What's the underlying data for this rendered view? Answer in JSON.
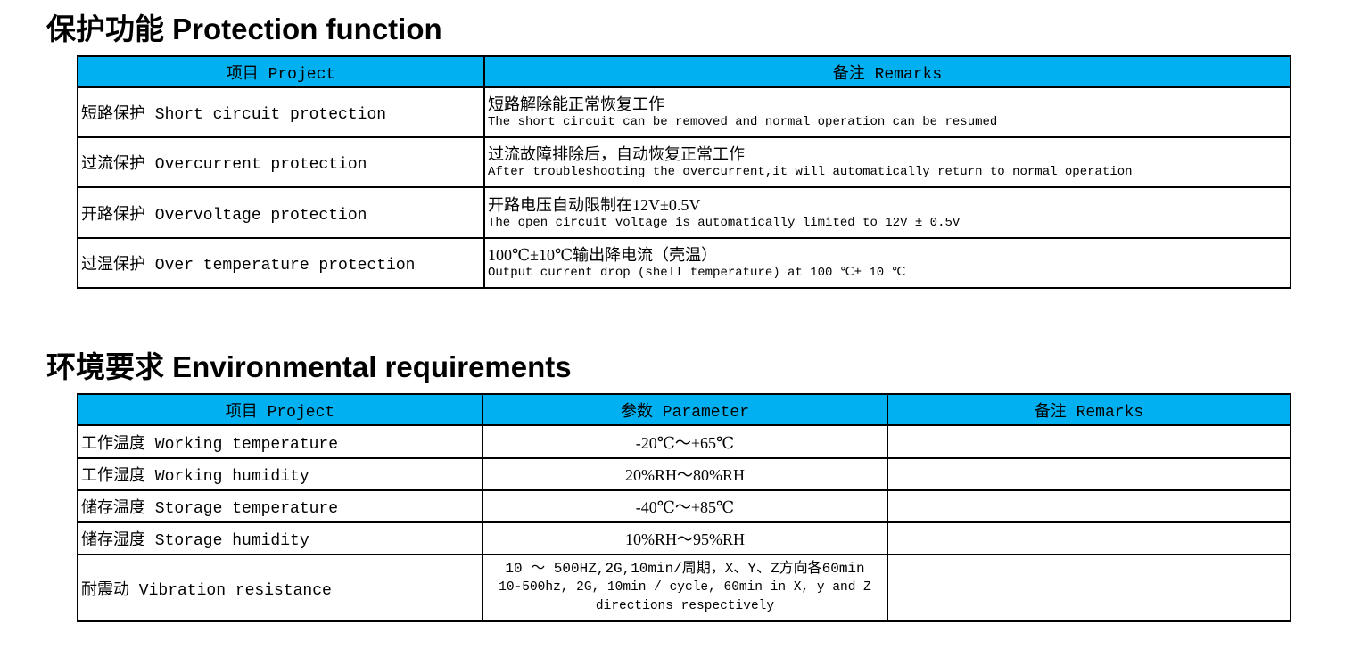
{
  "protection": {
    "title": "保护功能 Protection function",
    "headers": [
      "项目 Project",
      "备注 Remarks"
    ],
    "rows": [
      {
        "item": "短路保护 Short circuit protection",
        "remark_cn": "短路解除能正常恢复工作",
        "remark_en": "The short circuit can be removed and normal operation can be resumed"
      },
      {
        "item": "过流保护 Overcurrent protection",
        "remark_cn": "过流故障排除后，自动恢复正常工作",
        "remark_en": "After troubleshooting the overcurrent,it will automatically return to normal operation"
      },
      {
        "item": "开路保护 Overvoltage protection",
        "remark_cn": "开路电压自动限制在12V±0.5V",
        "remark_en": "The open circuit voltage is automatically limited to 12V ± 0.5V"
      },
      {
        "item": "过温保护 Over temperature protection",
        "remark_cn": "100℃±10℃输出降电流（壳温）",
        "remark_en": "Output current drop (shell temperature) at 100 ℃± 10 ℃"
      }
    ]
  },
  "environment": {
    "title": "环境要求 Environmental requirements",
    "headers": [
      "项目 Project",
      "参数 Parameter",
      "备注 Remarks"
    ],
    "rows": [
      {
        "item": "工作温度 Working temperature",
        "param": "-20℃～+65℃",
        "remark": ""
      },
      {
        "item": "工作湿度 Working humidity",
        "param": "20%RH～80%RH",
        "remark": ""
      },
      {
        "item": "储存温度 Storage temperature",
        "param": "-40℃～+85℃",
        "remark": ""
      },
      {
        "item": "储存湿度 Storage humidity",
        "param": "10%RH～95%RH",
        "remark": ""
      },
      {
        "item": "耐震动 Vibration resistance",
        "param": "10 ～ 500HZ,2G,10min/周期，X、Y、Z方向各60min",
        "param_en": "10-500hz, 2G, 10min / cycle, 60min in X, y and Z directions respectively",
        "remark": ""
      }
    ]
  },
  "colors": {
    "header_bg": "#00B0F0"
  }
}
